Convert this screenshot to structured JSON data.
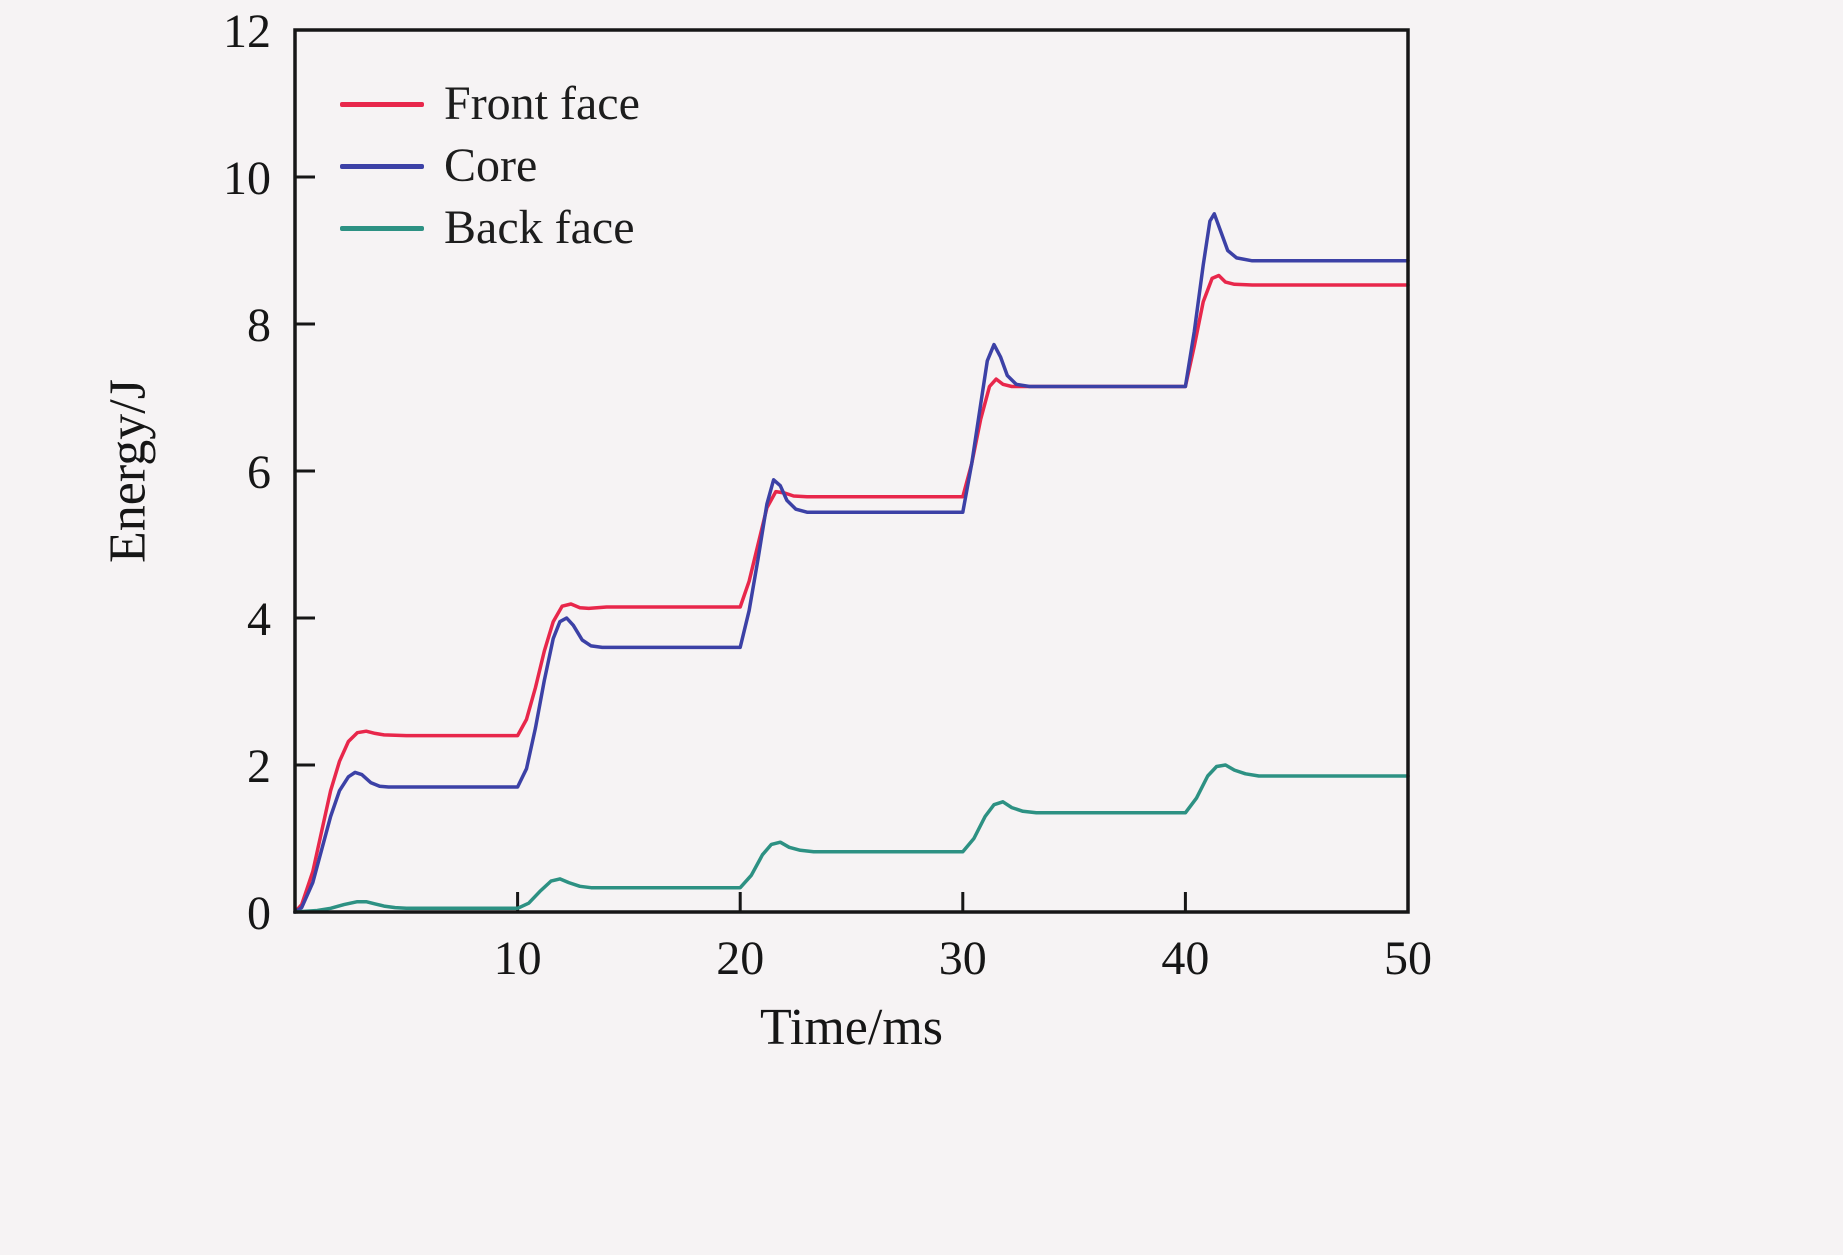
{
  "chart_data": {
    "type": "line",
    "title": "",
    "xlabel": "Time/ms",
    "ylabel": "Energy/J",
    "xlim": [
      0,
      50
    ],
    "ylim": [
      0,
      12
    ],
    "x_ticks": [
      10,
      20,
      30,
      40,
      50
    ],
    "y_ticks": [
      0,
      2,
      4,
      6,
      8,
      10,
      12
    ],
    "grid": false,
    "legend_position": "top-left",
    "background": "#f6f3f4",
    "axis_color": "#161616",
    "series": [
      {
        "name": "Front face",
        "color": "#e8274b",
        "points": [
          [
            0,
            0
          ],
          [
            0.3,
            0.1
          ],
          [
            0.8,
            0.55
          ],
          [
            1.2,
            1.1
          ],
          [
            1.6,
            1.65
          ],
          [
            2.0,
            2.05
          ],
          [
            2.4,
            2.32
          ],
          [
            2.8,
            2.44
          ],
          [
            3.2,
            2.46
          ],
          [
            3.6,
            2.43
          ],
          [
            4.0,
            2.41
          ],
          [
            5,
            2.4
          ],
          [
            10,
            2.4
          ],
          [
            10.4,
            2.62
          ],
          [
            10.8,
            3.05
          ],
          [
            11.2,
            3.55
          ],
          [
            11.6,
            3.95
          ],
          [
            12.0,
            4.16
          ],
          [
            12.4,
            4.19
          ],
          [
            12.8,
            4.14
          ],
          [
            13.2,
            4.13
          ],
          [
            14,
            4.15
          ],
          [
            20,
            4.15
          ],
          [
            20.4,
            4.5
          ],
          [
            20.8,
            5.0
          ],
          [
            21.2,
            5.5
          ],
          [
            21.6,
            5.72
          ],
          [
            22.0,
            5.7
          ],
          [
            22.4,
            5.66
          ],
          [
            23,
            5.65
          ],
          [
            30,
            5.65
          ],
          [
            30.4,
            6.1
          ],
          [
            30.8,
            6.7
          ],
          [
            31.2,
            7.15
          ],
          [
            31.5,
            7.25
          ],
          [
            31.8,
            7.18
          ],
          [
            32.2,
            7.15
          ],
          [
            33,
            7.15
          ],
          [
            40,
            7.15
          ],
          [
            40.4,
            7.7
          ],
          [
            40.8,
            8.3
          ],
          [
            41.2,
            8.62
          ],
          [
            41.5,
            8.66
          ],
          [
            41.8,
            8.57
          ],
          [
            42.2,
            8.54
          ],
          [
            43,
            8.53
          ],
          [
            50,
            8.53
          ]
        ]
      },
      {
        "name": "Core",
        "color": "#3c41a6",
        "points": [
          [
            0,
            0
          ],
          [
            0.3,
            0.06
          ],
          [
            0.8,
            0.4
          ],
          [
            1.2,
            0.85
          ],
          [
            1.6,
            1.3
          ],
          [
            2.0,
            1.65
          ],
          [
            2.4,
            1.84
          ],
          [
            2.7,
            1.9
          ],
          [
            3.0,
            1.87
          ],
          [
            3.4,
            1.76
          ],
          [
            3.8,
            1.71
          ],
          [
            4.2,
            1.7
          ],
          [
            10,
            1.7
          ],
          [
            10.4,
            1.95
          ],
          [
            10.8,
            2.5
          ],
          [
            11.2,
            3.15
          ],
          [
            11.6,
            3.72
          ],
          [
            11.9,
            3.95
          ],
          [
            12.2,
            4.0
          ],
          [
            12.5,
            3.9
          ],
          [
            12.9,
            3.7
          ],
          [
            13.3,
            3.62
          ],
          [
            13.8,
            3.6
          ],
          [
            20,
            3.6
          ],
          [
            20.4,
            4.1
          ],
          [
            20.8,
            4.8
          ],
          [
            21.2,
            5.55
          ],
          [
            21.5,
            5.88
          ],
          [
            21.8,
            5.8
          ],
          [
            22.1,
            5.6
          ],
          [
            22.5,
            5.48
          ],
          [
            23,
            5.44
          ],
          [
            30,
            5.44
          ],
          [
            30.4,
            6.1
          ],
          [
            30.8,
            6.9
          ],
          [
            31.1,
            7.5
          ],
          [
            31.4,
            7.72
          ],
          [
            31.7,
            7.55
          ],
          [
            32.0,
            7.3
          ],
          [
            32.4,
            7.18
          ],
          [
            33,
            7.15
          ],
          [
            40,
            7.15
          ],
          [
            40.4,
            7.9
          ],
          [
            40.8,
            8.8
          ],
          [
            41.1,
            9.4
          ],
          [
            41.3,
            9.5
          ],
          [
            41.6,
            9.25
          ],
          [
            41.9,
            9.0
          ],
          [
            42.3,
            8.9
          ],
          [
            43,
            8.86
          ],
          [
            50,
            8.86
          ]
        ]
      },
      {
        "name": "Back face",
        "color": "#2d9183",
        "points": [
          [
            0,
            0
          ],
          [
            1,
            0.02
          ],
          [
            1.6,
            0.05
          ],
          [
            2.2,
            0.1
          ],
          [
            2.8,
            0.14
          ],
          [
            3.2,
            0.14
          ],
          [
            3.6,
            0.11
          ],
          [
            4.0,
            0.08
          ],
          [
            4.5,
            0.06
          ],
          [
            5,
            0.05
          ],
          [
            10,
            0.05
          ],
          [
            10.5,
            0.12
          ],
          [
            11,
            0.28
          ],
          [
            11.5,
            0.42
          ],
          [
            11.9,
            0.45
          ],
          [
            12.3,
            0.4
          ],
          [
            12.8,
            0.35
          ],
          [
            13.3,
            0.33
          ],
          [
            14,
            0.33
          ],
          [
            20,
            0.33
          ],
          [
            20.5,
            0.5
          ],
          [
            21,
            0.78
          ],
          [
            21.4,
            0.92
          ],
          [
            21.8,
            0.95
          ],
          [
            22.2,
            0.88
          ],
          [
            22.7,
            0.84
          ],
          [
            23.3,
            0.82
          ],
          [
            30,
            0.82
          ],
          [
            30.5,
            1.0
          ],
          [
            31,
            1.3
          ],
          [
            31.4,
            1.46
          ],
          [
            31.8,
            1.5
          ],
          [
            32.2,
            1.42
          ],
          [
            32.7,
            1.37
          ],
          [
            33.3,
            1.35
          ],
          [
            40,
            1.35
          ],
          [
            40.5,
            1.55
          ],
          [
            41,
            1.85
          ],
          [
            41.4,
            1.98
          ],
          [
            41.8,
            2.0
          ],
          [
            42.2,
            1.93
          ],
          [
            42.7,
            1.88
          ],
          [
            43.3,
            1.85
          ],
          [
            50,
            1.85
          ]
        ]
      }
    ]
  }
}
